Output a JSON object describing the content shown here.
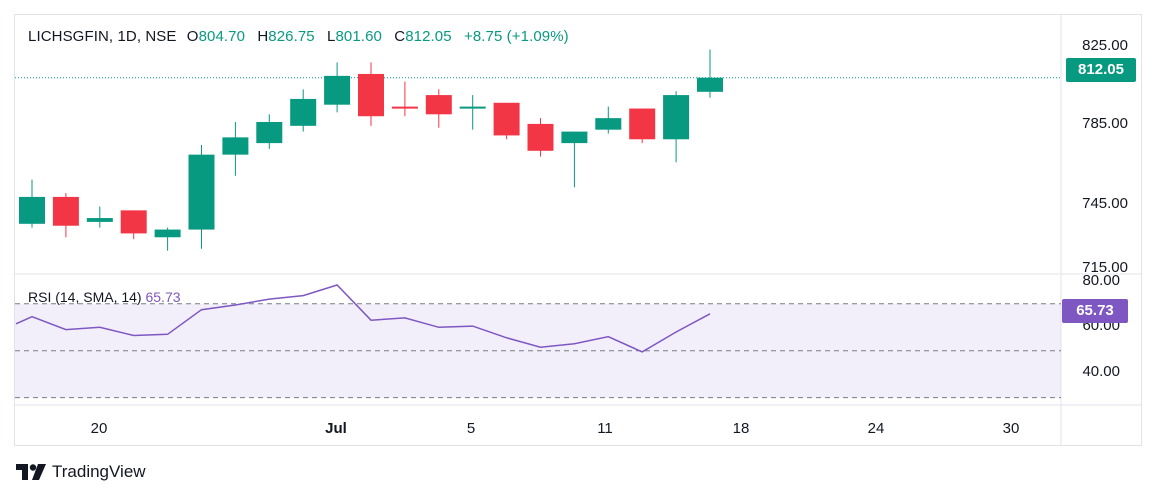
{
  "legend": {
    "symbol": "LICHSGFIN, 1D, NSE",
    "open_label": "O",
    "open": "804.70",
    "high_label": "H",
    "high": "826.75",
    "low_label": "L",
    "low": "801.60",
    "close_label": "C",
    "close": "812.05",
    "change": "+8.75 (+1.09%)"
  },
  "last_price_tag": "812.05",
  "rsi": {
    "label": "RSI (14, SMA, 14)",
    "value": "65.73",
    "tag": "65.73"
  },
  "brand": {
    "name": "TradingView"
  },
  "colors": {
    "up": "#089981",
    "down": "#f23645",
    "rsi": "#7e57c2",
    "rsi_band": "#f2effa"
  },
  "chart_data": [
    {
      "type": "candlestick",
      "title": "LICHSGFIN, 1D, NSE",
      "x_tick_labels": [
        "20",
        "Jul",
        "5",
        "11",
        "18",
        "24",
        "30"
      ],
      "y_tick_labels": [
        "825.00",
        "785.00",
        "745.00",
        "715.00"
      ],
      "ylim": [
        713,
        840
      ],
      "last_price": 812.05,
      "candles": [
        {
          "open": 736,
          "high": 759,
          "low": 734,
          "close": 750
        },
        {
          "open": 750,
          "high": 752,
          "low": 729,
          "close": 735
        },
        {
          "open": 737,
          "high": 745,
          "low": 734,
          "close": 739
        },
        {
          "open": 743,
          "high": 743,
          "low": 728,
          "close": 731
        },
        {
          "open": 729,
          "high": 734,
          "low": 722,
          "close": 733
        },
        {
          "open": 733,
          "high": 777,
          "low": 723,
          "close": 772
        },
        {
          "open": 772,
          "high": 789,
          "low": 761,
          "close": 781
        },
        {
          "open": 778,
          "high": 793,
          "low": 775,
          "close": 789
        },
        {
          "open": 787,
          "high": 806,
          "low": 784,
          "close": 801
        },
        {
          "open": 798,
          "high": 820,
          "low": 794,
          "close": 813
        },
        {
          "open": 814,
          "high": 820,
          "low": 787,
          "close": 792
        },
        {
          "open": 797,
          "high": 810,
          "low": 792,
          "close": 796
        },
        {
          "open": 803,
          "high": 806,
          "low": 786,
          "close": 793
        },
        {
          "open": 796,
          "high": 803,
          "low": 785,
          "close": 797
        },
        {
          "open": 799,
          "high": 799,
          "low": 780,
          "close": 782
        },
        {
          "open": 788,
          "high": 791,
          "low": 771,
          "close": 774
        },
        {
          "open": 778,
          "high": 784,
          "low": 755,
          "close": 784
        },
        {
          "open": 785,
          "high": 797,
          "low": 783,
          "close": 791
        },
        {
          "open": 796,
          "high": 796,
          "low": 778,
          "close": 780
        },
        {
          "open": 780,
          "high": 805,
          "low": 768,
          "close": 803
        },
        {
          "open": 804.7,
          "high": 826.75,
          "low": 801.6,
          "close": 812.05
        }
      ]
    },
    {
      "type": "line",
      "title": "RSI (14, SMA, 14)",
      "y_tick_labels": [
        "80.00",
        "60.00",
        "40.00"
      ],
      "ylim": [
        29,
        81
      ],
      "bands": {
        "upper": 70,
        "lower": 30
      },
      "values": [
        61.5,
        64.5,
        59,
        60,
        56.5,
        57,
        67.5,
        69.5,
        72,
        73.5,
        78,
        63,
        64,
        60,
        60.5,
        55.5,
        51.5,
        53,
        56,
        49.5,
        58,
        65.73
      ]
    }
  ]
}
